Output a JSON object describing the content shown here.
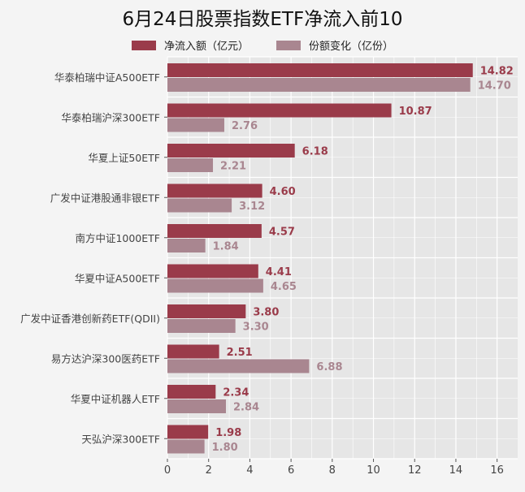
{
  "chart_data": {
    "type": "bar",
    "orientation": "horizontal",
    "title": "6月24日股票指数ETF净流入前10",
    "categories": [
      "华泰柏瑞中证A500ETF",
      "华泰柏瑞沪深300ETF",
      "华夏上证50ETF",
      "广发中证港股通非银ETF",
      "南方中证1000ETF",
      "华夏中证A500ETF",
      "广发中证香港创新药ETF(QDII)",
      "易方达沪深300医药ETF",
      "华夏中证机器人ETF",
      "天弘沪深300ETF"
    ],
    "series": [
      {
        "name": "净流入额（亿元）",
        "color": "#9a3b4a",
        "values": [
          14.82,
          10.87,
          6.18,
          4.6,
          4.57,
          4.41,
          3.8,
          2.51,
          2.34,
          1.98
        ],
        "labels": [
          "14.82",
          "10.87",
          "6.18",
          "4.60",
          "4.57",
          "4.41",
          "3.80",
          "2.51",
          "2.34",
          "1.98"
        ]
      },
      {
        "name": "份额变化（亿份）",
        "color": "#a98690",
        "values": [
          14.7,
          2.76,
          2.21,
          3.12,
          1.84,
          4.65,
          3.3,
          6.88,
          2.84,
          1.8
        ],
        "labels": [
          "14.70",
          "2.76",
          "2.21",
          "3.12",
          "1.84",
          "4.65",
          "3.30",
          "6.88",
          "2.84",
          "1.80"
        ]
      }
    ],
    "xlim": [
      0,
      17
    ],
    "xticks": [
      "0",
      "2",
      "4",
      "6",
      "8",
      "10",
      "12",
      "14",
      "16"
    ],
    "xlabel": "",
    "ylabel": "",
    "grid": true,
    "legend_position": "top"
  }
}
